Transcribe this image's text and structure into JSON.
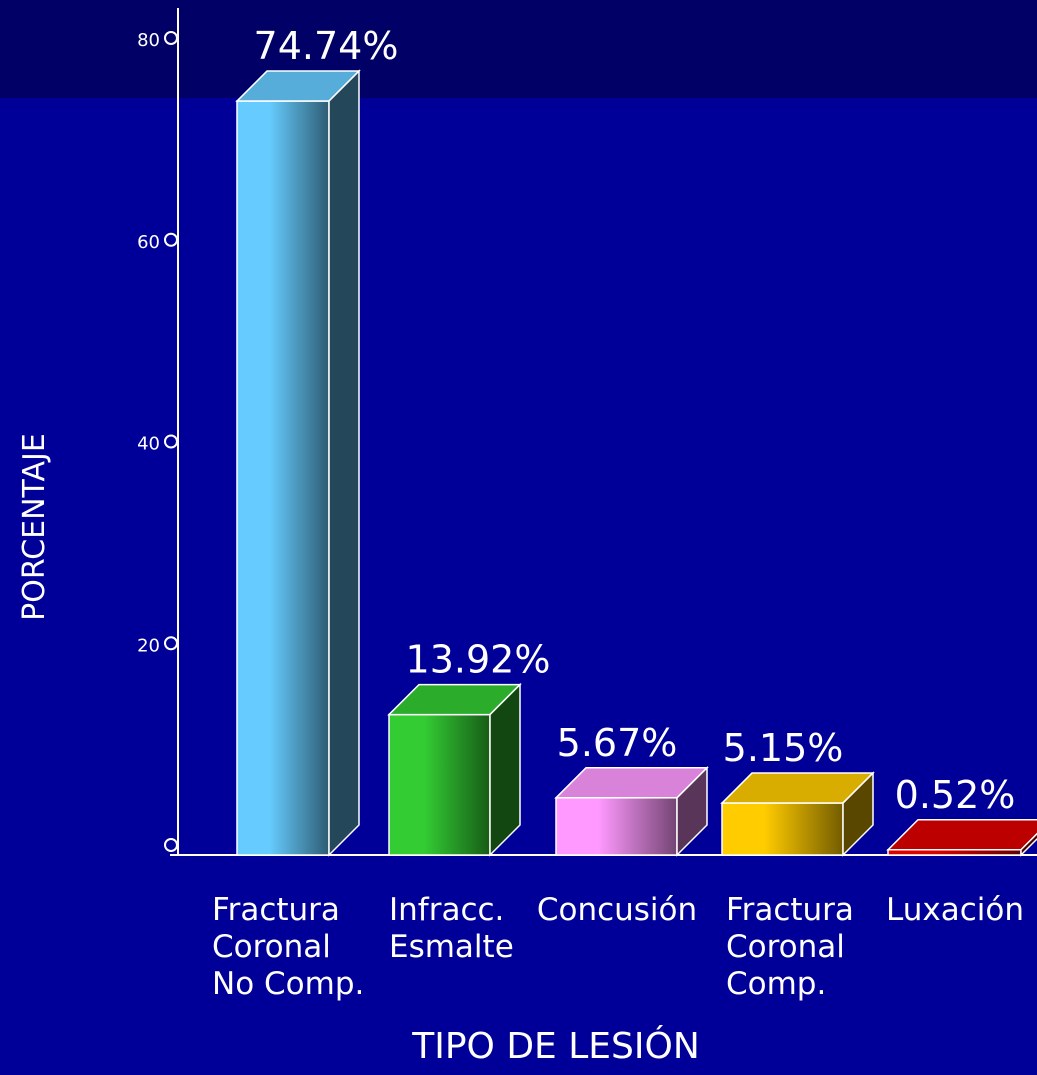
{
  "chart_data": {
    "type": "bar",
    "style": "3d",
    "xlabel": "TIPO DE LESIÓN",
    "ylabel": "PORCENTAJE",
    "ylim": [
      0,
      80
    ],
    "yticks": [
      {
        "value": 0,
        "label": ""
      },
      {
        "value": 20,
        "label": "20"
      },
      {
        "value": 40,
        "label": "40"
      },
      {
        "value": 60,
        "label": "60"
      },
      {
        "value": 80,
        "label": "80"
      }
    ],
    "grid": false,
    "categories": [
      [
        "Fractura",
        "Coronal",
        "No Comp."
      ],
      [
        "Infracc.",
        "Esmalte"
      ],
      [
        "Concusión"
      ],
      [
        "Fractura",
        "Coronal",
        "Comp."
      ],
      [
        "Luxación"
      ]
    ],
    "values": [
      74.74,
      13.92,
      5.67,
      5.15,
      0.52
    ],
    "value_labels": [
      "74.74%",
      "13.92%",
      "5.67%",
      "5.15%",
      "0.52%"
    ],
    "colors": [
      "#66ccff",
      "#33cc33",
      "#ff99ff",
      "#ffcc00",
      "#dd0000"
    ],
    "background": "#000099",
    "header_band_color": "#000066"
  }
}
